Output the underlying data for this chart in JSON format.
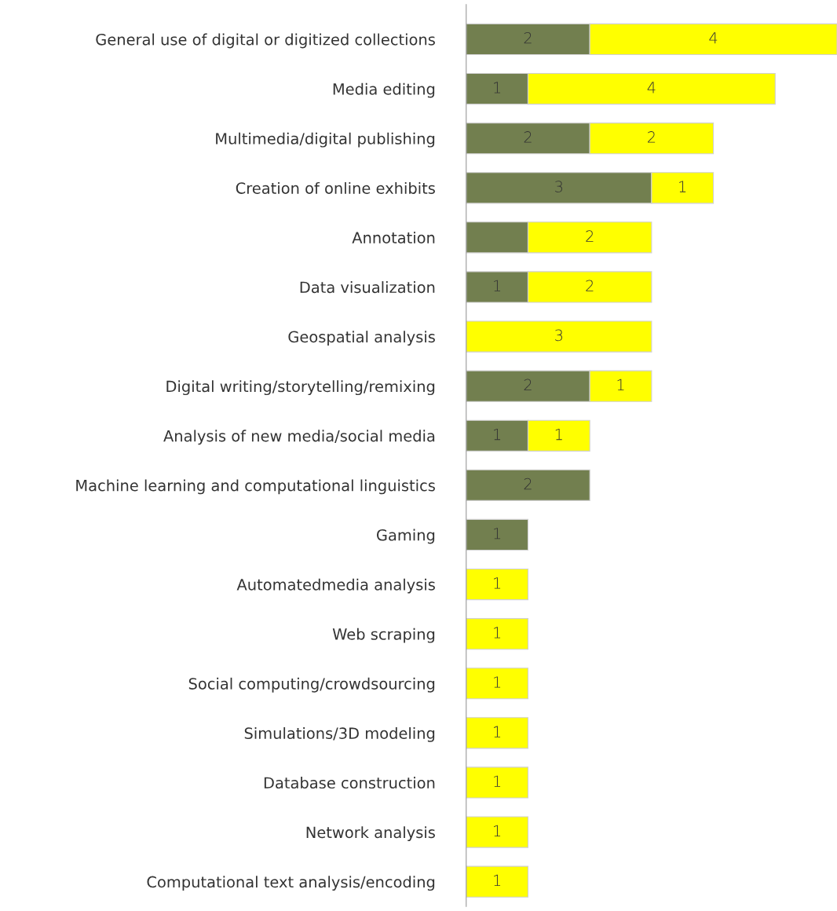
{
  "chart_data": {
    "type": "bar",
    "orientation": "horizontal",
    "stacked": true,
    "categories": [
      "General use of digital or digitized collections",
      "Media editing",
      "Multimedia/digital publishing",
      "Creation of online exhibits",
      "Annotation",
      "Data visualization",
      "Geospatial analysis",
      "Digital writing/storytelling/remixing",
      "Analysis of new media/social media",
      "Machine learning and computational linguistics",
      "Gaming",
      "Automatedmedia analysis",
      "Web scraping",
      "Social computing/crowdsourcing",
      "Simulations/3D modeling",
      "Database construction",
      "Network analysis",
      "Computational text analysis/encoding"
    ],
    "series": [
      {
        "color": "#727f4f",
        "values": [
          2,
          1,
          2,
          3,
          1,
          1,
          null,
          2,
          1,
          2,
          1,
          null,
          null,
          null,
          null,
          null,
          null,
          null
        ],
        "value_labels": [
          "2",
          "1",
          "2",
          "3",
          null,
          "1",
          null,
          "2",
          "1",
          "2",
          "1",
          null,
          null,
          null,
          null,
          null,
          null,
          null
        ]
      },
      {
        "color": "#ffff00",
        "values": [
          4,
          4,
          2,
          1,
          2,
          2,
          3,
          1,
          1,
          null,
          null,
          1,
          1,
          1,
          1,
          1,
          1,
          1
        ],
        "value_labels": [
          "4",
          "4",
          "2",
          "1",
          "2",
          "2",
          "3",
          "1",
          "1",
          null,
          null,
          "1",
          "1",
          "1",
          "1",
          "1",
          "1",
          "1"
        ]
      }
    ],
    "grid": false,
    "legend": false
  }
}
